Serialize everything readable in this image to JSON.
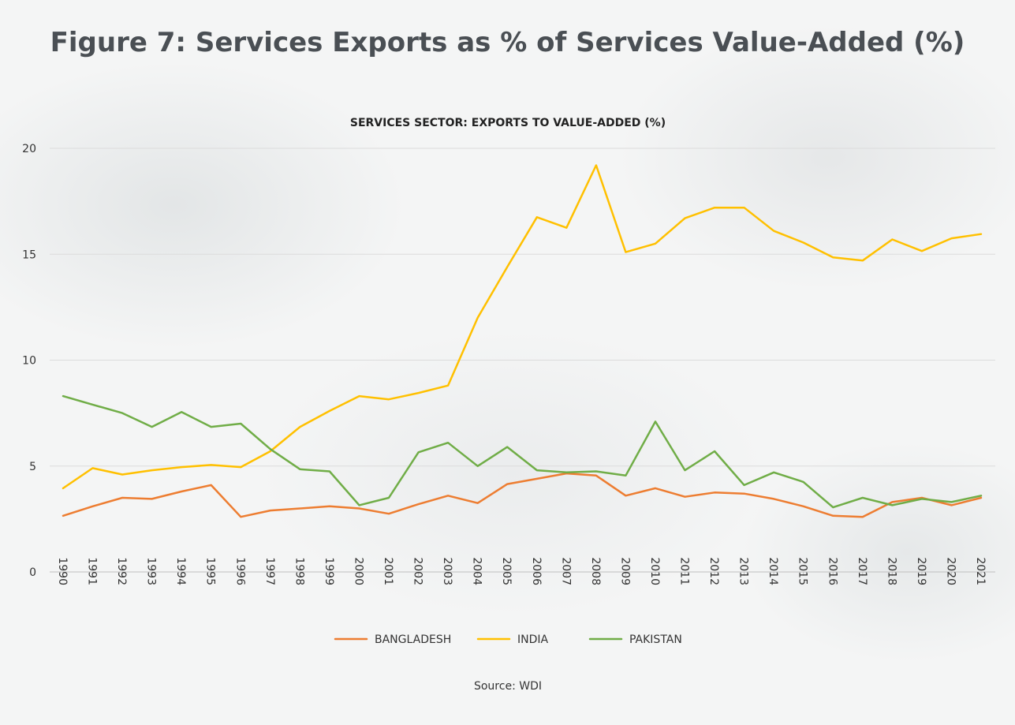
{
  "page": {
    "title": "Figure 7: Services Exports as % of Services Value-Added (%)",
    "source": "Source: WDI"
  },
  "chart_data": {
    "type": "line",
    "title": "SERVICES SECTOR: EXPORTS TO VALUE-ADDED (%)",
    "xlabel": "",
    "ylabel": "",
    "ylim": [
      0,
      20
    ],
    "yticks": [
      0,
      5,
      10,
      15,
      20
    ],
    "grid": true,
    "legend_position": "bottom",
    "x": [
      "1990",
      "1991",
      "1992",
      "1993",
      "1994",
      "1995",
      "1996",
      "1997",
      "1998",
      "1999",
      "2000",
      "2001",
      "2002",
      "2003",
      "2004",
      "2005",
      "2006",
      "2007",
      "2008",
      "2009",
      "2010",
      "2011",
      "2012",
      "2013",
      "2014",
      "2015",
      "2016",
      "2017",
      "2018",
      "2019",
      "2020",
      "2021"
    ],
    "series": [
      {
        "name": "BANGLADESH",
        "color": "#ed7d31",
        "values": [
          2.65,
          3.1,
          3.5,
          3.45,
          3.8,
          4.1,
          2.6,
          2.9,
          3.0,
          3.1,
          3.0,
          2.75,
          3.2,
          3.6,
          3.25,
          4.15,
          4.4,
          4.65,
          4.55,
          3.6,
          3.95,
          3.55,
          3.75,
          3.7,
          3.45,
          3.1,
          2.65,
          2.6,
          3.3,
          3.5,
          3.15,
          3.5
        ]
      },
      {
        "name": "INDIA",
        "color": "#ffc000",
        "values": [
          3.95,
          4.9,
          4.6,
          4.8,
          4.95,
          5.05,
          4.95,
          5.7,
          6.85,
          7.6,
          8.3,
          8.15,
          8.45,
          8.8,
          12.0,
          14.4,
          16.75,
          16.25,
          19.2,
          15.1,
          15.5,
          16.7,
          17.2,
          17.2,
          16.1,
          15.55,
          14.85,
          14.7,
          15.7,
          15.15,
          15.75,
          15.95
        ]
      },
      {
        "name": "PAKISTAN",
        "color": "#70ad47",
        "values": [
          8.3,
          7.9,
          7.5,
          6.85,
          7.55,
          6.85,
          7.0,
          5.8,
          4.85,
          4.75,
          3.15,
          3.5,
          5.65,
          6.1,
          5.0,
          5.9,
          4.8,
          4.7,
          4.75,
          4.55,
          7.1,
          4.8,
          5.7,
          4.1,
          4.7,
          4.25,
          3.05,
          3.5,
          3.15,
          3.45,
          3.3,
          3.6
        ]
      }
    ]
  }
}
